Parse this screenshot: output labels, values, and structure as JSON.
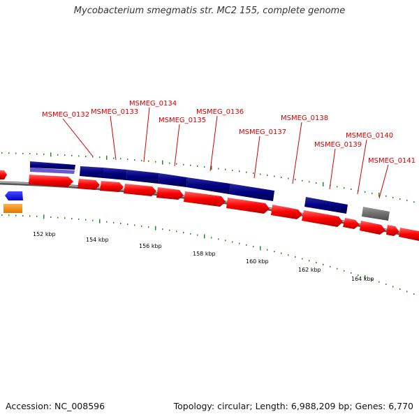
{
  "title": "Mycobacterium smegmatis str. MC2 155, complete genome",
  "footer": {
    "accession": "Accession: NC_008596",
    "summary": "Topology: circular; Length: 6,988,209 bp; Genes: 6,770"
  },
  "genes": [
    {
      "id": "MSMEG_0132",
      "label": "MSMEG_0132"
    },
    {
      "id": "MSMEG_0133",
      "label": "MSMEG_0133"
    },
    {
      "id": "MSMEG_0134",
      "label": "MSMEG_0134"
    },
    {
      "id": "MSMEG_0135",
      "label": "MSMEG_0135"
    },
    {
      "id": "MSMEG_0136",
      "label": "MSMEG_0136"
    },
    {
      "id": "MSMEG_0137",
      "label": "MSMEG_0137"
    },
    {
      "id": "MSMEG_0138",
      "label": "MSMEG_0138"
    },
    {
      "id": "MSMEG_0139",
      "label": "MSMEG_0139"
    },
    {
      "id": "MSMEG_0140",
      "label": "MSMEG_0140"
    },
    {
      "id": "MSMEG_0141",
      "label": "MSMEG_0141"
    }
  ],
  "ruler": [
    "152 kbp",
    "154 kbp",
    "156 kbp",
    "158 kbp",
    "160 kbp",
    "162 kbp",
    "164 kbp"
  ],
  "colors": {
    "cds_forward": "#ff0000",
    "protein_feature": "#000080",
    "protein_feature_light": "#6a5acd",
    "other_gene": "#707070",
    "reverse_blue": "#0000ff",
    "reverse_orange": "#ff8c00",
    "backbone": "#8c8c8c",
    "gc_tick": "#228b22",
    "label": "#d40000"
  }
}
